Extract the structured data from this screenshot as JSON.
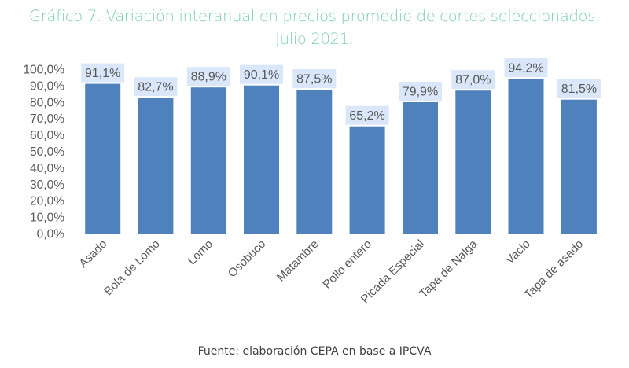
{
  "chart_data": {
    "type": "bar",
    "title": "Gráfico 7. Variación interanual en precios promedio de cortes seleccionados.",
    "subtitle": "Julio 2021.",
    "categories": [
      "Asado",
      "Bola de Lomo",
      "Lomo",
      "Osobuco",
      "Matambre",
      "Pollo entero",
      "Picada Especial",
      "Tapa de Nalga",
      "Vacio",
      "Tapa de asado"
    ],
    "values": [
      91.1,
      82.7,
      88.9,
      90.1,
      87.5,
      65.2,
      79.9,
      87.0,
      94.2,
      81.5
    ],
    "data_labels": [
      "91,1%",
      "82,7%",
      "88,9%",
      "90,1%",
      "87,5%",
      "65,2%",
      "79,9%",
      "87,0%",
      "94,2%",
      "81,5%"
    ],
    "xlabel": "",
    "ylabel": "",
    "ylim": [
      0,
      100
    ],
    "yticks": [
      0,
      10,
      20,
      30,
      40,
      50,
      60,
      70,
      80,
      90,
      100
    ],
    "ytick_labels": [
      "0,0%",
      "10,0%",
      "20,0%",
      "30,0%",
      "40,0%",
      "50,0%",
      "60,0%",
      "70,0%",
      "80,0%",
      "90,0%",
      "100,0%"
    ],
    "grid": false,
    "legend": "none",
    "source": "Fuente: elaboración CEPA en base a IPCVA",
    "colors": {
      "bar": "#4f81bd",
      "label_bg": "#dae7fa",
      "title": "#7fcfb3",
      "axis_text": "#595959",
      "axis_line": "#d9d9d9"
    }
  }
}
